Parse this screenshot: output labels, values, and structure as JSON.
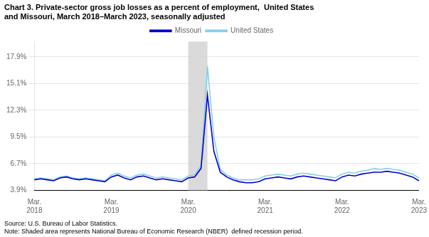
{
  "chart_data": {
    "type": "line",
    "title": [
      "Chart 3. Private-sector gross job losses as a percent of employment,  United States",
      "and Missouri, March 2018–March 2023, seasonally adjusted"
    ],
    "footer": [
      "Source: U.S. Bureau of Labor Statistics.",
      "Note: Shaded area represents National Bureau of Economic Research (NBER)  defined recession period."
    ],
    "categories": [
      "Mar.\n2018",
      null,
      null,
      null,
      null,
      null,
      null,
      null,
      null,
      null,
      null,
      null,
      "Mar.\n2019",
      null,
      null,
      null,
      null,
      null,
      null,
      null,
      null,
      null,
      null,
      null,
      "Mar.\n2020",
      null,
      null,
      null,
      null,
      null,
      null,
      null,
      null,
      null,
      null,
      null,
      "Mar.\n2021",
      null,
      null,
      null,
      null,
      null,
      null,
      null,
      null,
      null,
      null,
      null,
      "Mar.\n2022",
      null,
      null,
      null,
      null,
      null,
      null,
      null,
      null,
      null,
      null,
      null,
      "Mar.\n2023"
    ],
    "series": [
      {
        "name": "Missouri",
        "color": "#0000CD",
        "values": [
          5.0,
          5.1,
          5.0,
          4.9,
          5.2,
          5.3,
          5.1,
          5.0,
          5.1,
          5.0,
          4.9,
          4.8,
          5.3,
          5.5,
          5.2,
          5.0,
          5.3,
          5.4,
          5.2,
          5.0,
          5.1,
          5.0,
          4.9,
          4.8,
          5.2,
          5.3,
          6.2,
          13.9,
          8.0,
          5.8,
          5.3,
          5.0,
          4.8,
          4.7,
          4.7,
          4.8,
          5.1,
          5.2,
          5.3,
          5.2,
          5.1,
          5.3,
          5.4,
          5.3,
          5.2,
          5.1,
          5.0,
          4.9,
          5.3,
          5.5,
          5.4,
          5.6,
          5.7,
          5.8,
          5.8,
          5.9,
          5.8,
          5.7,
          5.5,
          5.3,
          4.9
        ]
      },
      {
        "name": "United States",
        "color": "#87CEEB",
        "values": [
          5.1,
          5.2,
          5.1,
          5.0,
          5.3,
          5.4,
          5.2,
          5.1,
          5.2,
          5.1,
          5.0,
          4.9,
          5.5,
          5.7,
          5.4,
          5.2,
          5.5,
          5.6,
          5.4,
          5.2,
          5.3,
          5.2,
          5.1,
          5.0,
          5.4,
          5.5,
          6.5,
          16.9,
          9.5,
          6.1,
          5.5,
          5.2,
          5.0,
          5.0,
          5.0,
          5.1,
          5.4,
          5.5,
          5.6,
          5.5,
          5.4,
          5.6,
          5.7,
          5.6,
          5.5,
          5.4,
          5.3,
          5.2,
          5.6,
          5.8,
          5.7,
          5.9,
          6.0,
          6.2,
          6.1,
          6.2,
          6.1,
          6.0,
          5.8,
          5.6,
          5.2
        ]
      }
    ],
    "shaded_range": [
      24,
      27
    ],
    "shaded_color": "#D3D3D3",
    "ylim": [
      3.9,
      19.5
    ],
    "yticks": [
      {
        "value": 3.9,
        "label": "3.9%"
      },
      {
        "value": 6.7,
        "label": "6.7%"
      },
      {
        "value": 9.5,
        "label": "9.5%"
      },
      {
        "value": 12.3,
        "label": "12.3%"
      },
      {
        "value": 15.1,
        "label": "15.1%"
      },
      {
        "value": 17.9,
        "label": "17.9%"
      }
    ],
    "grid": "y",
    "legend": "top"
  }
}
